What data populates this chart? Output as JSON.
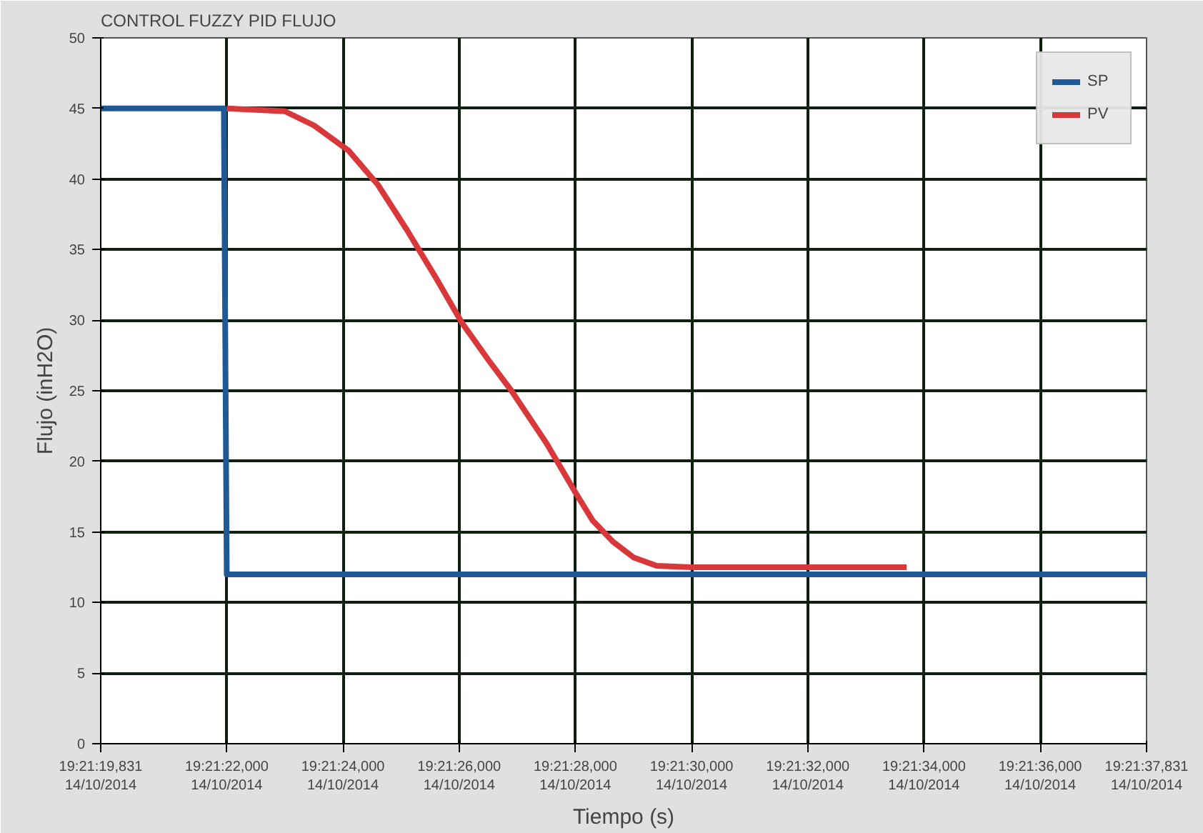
{
  "chart_data": {
    "type": "line",
    "title": "CONTROL FUZZY PID FLUJO",
    "xlabel": "Tiempo (s)",
    "ylabel": "Flujo (inH2O)",
    "xlim": [
      "2014-10-14T19:21:19.831",
      "2014-10-14T19:21:37.831"
    ],
    "ylim": [
      0,
      50
    ],
    "xticks": [
      {
        "value": "2014-10-14T19:21:19.831",
        "label": "19:21:19,831\n14/10/2014"
      },
      {
        "value": "2014-10-14T19:21:22",
        "label": "19:21:22,000\n14/10/2014"
      },
      {
        "value": "2014-10-14T19:21:24",
        "label": "19:21:24,000\n14/10/2014"
      },
      {
        "value": "2014-10-14T19:21:26",
        "label": "19:21:26,000\n14/10/2014"
      },
      {
        "value": "2014-10-14T19:21:28",
        "label": "19:21:28,000\n14/10/2014"
      },
      {
        "value": "2014-10-14T19:21:30",
        "label": "19:21:30,000\n14/10/2014"
      },
      {
        "value": "2014-10-14T19:21:32",
        "label": "19:21:32,000\n14/10/2014"
      },
      {
        "value": "2014-10-14T19:21:34",
        "label": "19:21:34,000\n14/10/2014"
      },
      {
        "value": "2014-10-14T19:21:36",
        "label": "19:21:36,000\n14/10/2014"
      },
      {
        "value": "2014-10-14T19:21:37.831",
        "label": "19:21:37,831\n14/10/2014"
      }
    ],
    "yticks": [
      0,
      5,
      10,
      15,
      20,
      25,
      30,
      35,
      40,
      45,
      50
    ],
    "grid": true,
    "legend": "top right",
    "line_style": "solid",
    "series": [
      {
        "name": "SP",
        "color": "#1f5a96",
        "x": [
          "2014-10-14T19:21:19.831",
          "2014-10-14T19:21:21.95",
          "2014-10-14T19:21:22",
          "2014-10-14T19:21:37.831"
        ],
        "values": [
          45,
          45,
          12,
          12
        ]
      },
      {
        "name": "PV",
        "color": "#d9383a",
        "x": [
          "2014-10-14T19:21:22",
          "2014-10-14T19:21:23",
          "2014-10-14T19:21:23.5",
          "2014-10-14T19:21:24.1",
          "2014-10-14T19:21:24.6",
          "2014-10-14T19:21:25.1",
          "2014-10-14T19:21:25.6",
          "2014-10-14T19:21:26.05",
          "2014-10-14T19:21:26.5",
          "2014-10-14T19:21:26.9",
          "2014-10-14T19:21:27.5",
          "2014-10-14T19:21:28",
          "2014-10-14T19:21:28.3",
          "2014-10-14T19:21:28.65",
          "2014-10-14T19:21:29",
          "2014-10-14T19:21:29.4",
          "2014-10-14T19:21:30",
          "2014-10-14T19:21:31",
          "2014-10-14T19:21:32",
          "2014-10-14T19:21:33",
          "2014-10-14T19:21:33.7"
        ],
        "values": [
          45,
          44.8,
          43.8,
          42.0,
          39.6,
          36.4,
          33.0,
          29.8,
          27.2,
          25.0,
          21.3,
          17.8,
          15.8,
          14.3,
          13.2,
          12.6,
          12.5,
          12.5,
          12.5,
          12.5,
          12.5
        ]
      }
    ]
  }
}
